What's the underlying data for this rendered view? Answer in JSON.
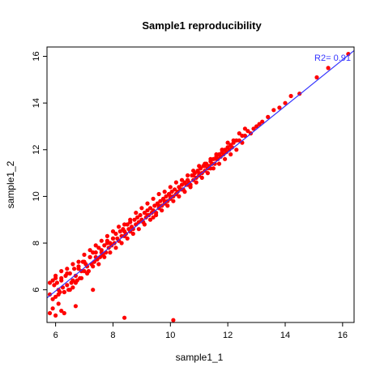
{
  "chart_data": {
    "type": "scatter",
    "title": "Sample1 reproducibility",
    "xlabel": "sample1_1",
    "ylabel": "sample1_2",
    "xlim": [
      5.7,
      16.4
    ],
    "ylim": [
      4.6,
      16.4
    ],
    "xticks": [
      "6",
      "8",
      "10",
      "12",
      "14",
      "16"
    ],
    "yticks": [
      "6",
      "8",
      "10",
      "12",
      "14",
      "16"
    ],
    "grid": false,
    "colors": {
      "points": "#ff0000",
      "fit_line": "#3333ff",
      "annotation": "#3333ff"
    },
    "annotation": "R2= 0.91",
    "fit_line": {
      "slope": 0.99,
      "intercept": 0.01
    },
    "points_x": [
      5.8,
      5.9,
      5.95,
      6.0,
      6.05,
      6.1,
      6.15,
      6.2,
      6.25,
      6.3,
      6.35,
      6.4,
      6.45,
      6.5,
      6.55,
      6.6,
      6.65,
      6.7,
      6.75,
      6.8,
      6.85,
      6.9,
      6.95,
      7.0,
      7.05,
      7.1,
      7.15,
      7.2,
      7.25,
      7.3,
      7.35,
      7.4,
      7.45,
      7.5,
      7.55,
      7.6,
      7.65,
      7.7,
      7.75,
      7.8,
      7.85,
      7.9,
      7.95,
      8.0,
      8.05,
      8.1,
      8.15,
      8.2,
      8.25,
      8.3,
      8.35,
      8.4,
      8.45,
      8.5,
      8.55,
      8.6,
      8.65,
      8.7,
      8.75,
      8.8,
      8.85,
      8.9,
      8.95,
      9.0,
      9.05,
      9.1,
      9.15,
      9.2,
      9.25,
      9.3,
      9.35,
      9.4,
      9.45,
      9.5,
      9.55,
      9.6,
      9.65,
      9.7,
      9.75,
      9.8,
      9.85,
      9.9,
      9.95,
      10.0,
      10.05,
      10.1,
      10.15,
      10.2,
      10.25,
      10.3,
      10.35,
      10.4,
      10.45,
      10.5,
      10.55,
      10.6,
      10.65,
      10.7,
      10.75,
      10.8,
      10.85,
      10.9,
      10.95,
      11.0,
      11.05,
      11.1,
      11.15,
      11.2,
      11.25,
      11.3,
      11.35,
      11.4,
      11.45,
      11.5,
      11.55,
      11.6,
      11.65,
      11.7,
      11.75,
      11.8,
      11.85,
      11.9,
      11.95,
      12.0,
      12.05,
      12.1,
      12.15,
      12.2,
      12.3,
      12.4,
      12.5,
      12.6,
      12.7,
      12.8,
      12.9,
      13.0,
      13.1,
      13.2,
      13.4,
      13.6,
      13.8,
      14.0,
      14.2,
      14.5,
      15.1,
      15.5,
      16.2,
      5.9,
      6.0,
      6.1,
      6.2,
      6.3,
      6.4,
      6.5,
      6.6,
      6.7,
      6.8,
      6.9,
      7.0,
      7.1,
      7.2,
      7.3,
      7.4,
      7.5,
      7.6,
      7.7,
      7.8,
      7.9,
      8.0,
      8.1,
      8.2,
      8.3,
      8.4,
      8.5,
      8.6,
      8.7,
      8.8,
      8.9,
      9.0,
      9.1,
      9.2,
      9.3,
      9.4,
      9.5,
      9.6,
      9.7,
      9.8,
      9.9,
      10.0,
      10.1,
      10.2,
      10.3,
      10.4,
      10.5,
      10.6,
      10.7,
      10.8,
      10.9,
      11.0,
      11.1,
      11.2,
      11.3,
      11.4,
      11.5,
      11.6,
      11.7,
      11.8,
      11.9,
      12.0,
      12.1,
      12.2,
      12.3,
      12.4,
      12.5,
      12.6,
      5.8,
      6.0,
      6.2,
      6.4,
      6.6,
      6.8,
      7.0,
      7.2,
      7.4,
      7.6,
      7.8,
      8.0,
      8.2,
      8.4,
      8.6,
      8.8,
      9.0,
      9.2,
      9.4,
      9.6,
      9.8,
      10.0,
      10.2,
      10.4,
      10.6,
      10.8,
      11.0,
      11.2,
      11.4,
      11.6,
      11.8,
      12.0,
      8.4,
      10.1,
      6.3,
      6.7,
      7.3,
      5.8,
      5.9,
      6.1,
      6.0,
      6.2
    ],
    "points_y": [
      5.8,
      5.6,
      6.2,
      5.7,
      6.3,
      6.0,
      5.9,
      6.5,
      6.1,
      5.9,
      6.6,
      6.2,
      6.0,
      6.7,
      6.3,
      6.1,
      6.9,
      6.6,
      6.4,
      7.0,
      6.5,
      6.8,
      7.2,
      6.8,
      7.1,
      7.0,
      6.8,
      7.4,
      7.1,
      7.6,
      7.2,
      7.4,
      7.3,
      7.8,
      7.4,
      7.7,
      7.5,
      7.9,
      7.6,
      8.1,
      7.8,
      8.0,
      7.9,
      8.2,
      8.0,
      8.4,
      8.2,
      8.1,
      8.5,
      8.3,
      8.6,
      8.5,
      8.4,
      8.8,
      8.6,
      8.9,
      8.7,
      8.6,
      9.0,
      8.8,
      9.1,
      8.9,
      9.2,
      9.0,
      8.9,
      9.3,
      9.1,
      9.4,
      9.2,
      9.5,
      9.3,
      9.4,
      9.6,
      9.3,
      9.7,
      9.6,
      9.8,
      9.6,
      9.9,
      9.7,
      10.0,
      9.8,
      10.1,
      9.9,
      10.2,
      10.0,
      10.3,
      10.1,
      10.2,
      10.4,
      10.3,
      10.5,
      10.3,
      10.6,
      10.5,
      10.7,
      10.6,
      10.5,
      10.9,
      10.7,
      11.0,
      10.8,
      11.1,
      10.9,
      11.2,
      11.0,
      11.3,
      11.1,
      11.4,
      11.2,
      11.3,
      11.5,
      11.4,
      11.6,
      11.4,
      11.7,
      11.6,
      11.8,
      11.7,
      11.9,
      11.8,
      12.0,
      11.9,
      12.1,
      12.0,
      12.2,
      12.1,
      12.3,
      12.4,
      12.4,
      12.6,
      12.6,
      12.8,
      12.7,
      12.9,
      13.0,
      13.1,
      13.2,
      13.4,
      13.7,
      13.8,
      14.0,
      14.3,
      14.4,
      15.1,
      15.5,
      16.1,
      6.4,
      6.5,
      5.8,
      6.8,
      5.9,
      6.9,
      6.0,
      7.1,
      6.3,
      7.2,
      6.5,
      7.5,
      6.7,
      7.7,
      7.0,
      7.9,
      7.1,
      8.1,
      7.4,
      8.3,
      7.6,
      8.5,
      7.8,
      8.7,
      8.0,
      8.8,
      8.2,
      9.0,
      8.4,
      9.3,
      8.6,
      9.5,
      8.8,
      9.7,
      9.0,
      9.9,
      9.2,
      10.1,
      9.4,
      10.2,
      9.6,
      10.4,
      9.8,
      10.6,
      10.0,
      10.7,
      10.2,
      10.9,
      10.4,
      11.1,
      10.6,
      11.3,
      10.8,
      11.4,
      11.0,
      11.6,
      11.2,
      11.8,
      11.4,
      12.0,
      11.6,
      12.1,
      11.8,
      12.4,
      12.0,
      12.7,
      12.3,
      12.9,
      6.3,
      6.6,
      6.4,
      6.7,
      6.4,
      6.9,
      7.2,
      7.4,
      7.6,
      7.6,
      8.0,
      8.2,
      8.1,
      8.3,
      8.5,
      8.8,
      9.0,
      9.2,
      9.1,
      9.5,
      9.8,
      10.0,
      10.1,
      10.3,
      10.5,
      10.9,
      11.0,
      11.3,
      11.2,
      11.6,
      12.0,
      12.3,
      4.8,
      4.7,
      5.0,
      5.3,
      6.0,
      5.0,
      5.2,
      5.4,
      4.9,
      5.1
    ]
  }
}
